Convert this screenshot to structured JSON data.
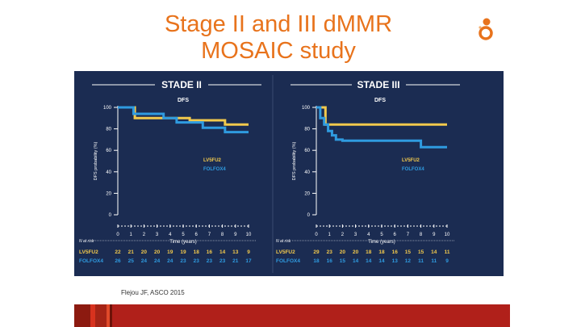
{
  "slide": {
    "title_line1": "Stage II and III dMMR",
    "title_line2": "MOSAIC study",
    "citation": "Flejou JF, ASCO 2015"
  },
  "colors": {
    "title": "#e8731c",
    "panel_bg": "#1b2c52",
    "lv5fu2": "#f2c94c",
    "folfox4": "#2f9be0",
    "text_light": "#ffffff"
  },
  "chart_data": [
    {
      "type": "line",
      "title": "STADE II",
      "subtitle": "DFS",
      "ylabel": "DFS probability (%)",
      "xlabel": "Time (years)",
      "ylim": [
        0,
        100
      ],
      "xlim": [
        0,
        10
      ],
      "y_ticks": [
        "0",
        "20",
        "40",
        "60",
        "80",
        "100"
      ],
      "x_ticks": [
        "0",
        "1",
        "2",
        "3",
        "4",
        "5",
        "6",
        "7",
        "8",
        "9",
        "10"
      ],
      "legend": [
        "LV5FU2",
        "FOLFOX4"
      ],
      "series": [
        {
          "name": "LV5FU2",
          "color": "#f2c94c",
          "x": [
            0,
            1,
            1.3,
            5.5,
            8.2,
            10
          ],
          "y": [
            100,
            100,
            90,
            88,
            84,
            84
          ]
        },
        {
          "name": "FOLFOX4",
          "color": "#2f9be0",
          "x": [
            0,
            0.8,
            1.2,
            3.5,
            4.5,
            6.5,
            8.2,
            10
          ],
          "y": [
            100,
            100,
            94,
            90,
            86,
            81,
            77,
            77
          ]
        }
      ],
      "risk_table": {
        "label": "N at risk",
        "rows": [
          {
            "name": "LV5FU2",
            "values": [
              "22",
              "21",
              "20",
              "20",
              "19",
              "19",
              "18",
              "16",
              "14",
              "13",
              "9"
            ]
          },
          {
            "name": "FOLFOX4",
            "values": [
              "26",
              "25",
              "24",
              "24",
              "24",
              "23",
              "23",
              "23",
              "23",
              "21",
              "17"
            ]
          }
        ]
      }
    },
    {
      "type": "line",
      "title": "STADE III",
      "subtitle": "DFS",
      "ylabel": "DFS probability (%)",
      "xlabel": "Time (years)",
      "ylim": [
        0,
        100
      ],
      "xlim": [
        0,
        10
      ],
      "y_ticks": [
        "0",
        "20",
        "40",
        "60",
        "80",
        "100"
      ],
      "x_ticks": [
        "0",
        "1",
        "2",
        "3",
        "4",
        "5",
        "6",
        "7",
        "8",
        "9",
        "10"
      ],
      "legend": [
        "LV5FU2",
        "FOLFOX4"
      ],
      "series": [
        {
          "name": "LV5FU2",
          "color": "#f2c94c",
          "x": [
            0,
            0.4,
            0.7,
            10
          ],
          "y": [
            100,
            100,
            84,
            84
          ]
        },
        {
          "name": "FOLFOX4",
          "color": "#2f9be0",
          "x": [
            0,
            0.3,
            0.6,
            0.9,
            1.2,
            1.5,
            2,
            7.3,
            8,
            10
          ],
          "y": [
            100,
            90,
            84,
            78,
            74,
            70,
            69,
            69,
            63,
            63
          ]
        }
      ],
      "risk_table": {
        "label": "N at risk",
        "rows": [
          {
            "name": "LV5FU2",
            "values": [
              "29",
              "23",
              "20",
              "20",
              "18",
              "18",
              "16",
              "15",
              "15",
              "14",
              "11"
            ]
          },
          {
            "name": "FOLFOX4",
            "values": [
              "18",
              "16",
              "15",
              "14",
              "14",
              "14",
              "13",
              "12",
              "11",
              "11",
              "9"
            ]
          }
        ]
      }
    }
  ]
}
